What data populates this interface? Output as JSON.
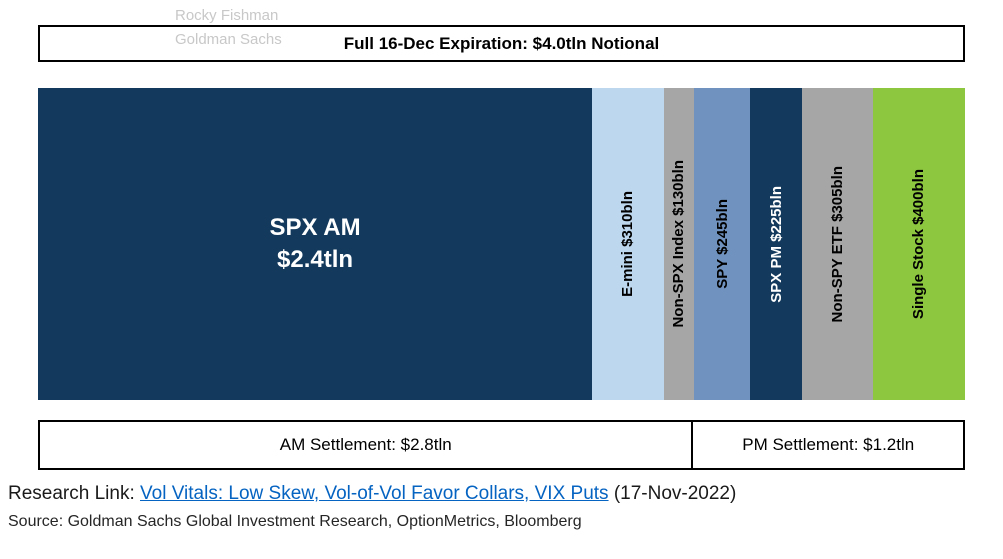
{
  "watermark": {
    "line1": "Rocky Fishman",
    "line2": "Goldman Sachs"
  },
  "chart_data": {
    "type": "bar",
    "subtype": "horizontal-stacked-proportional",
    "title": "Full 16-Dec Expiration: $4.0tln Notional",
    "total_notional_bln": 4000,
    "segments": [
      {
        "id": "spx-am",
        "label": "SPX AM\n$2.4tln",
        "value_bln": 2400,
        "color": "#133a5d",
        "text_color": "#ffffff",
        "horizontal_label": true
      },
      {
        "id": "e-mini",
        "label": "E-mini $310bln",
        "value_bln": 310,
        "color": "#bdd7ee",
        "text_color": "#000000",
        "horizontal_label": false
      },
      {
        "id": "non-spx-index",
        "label": "Non-SPX Index $130bln",
        "value_bln": 130,
        "color": "#a6a6a6",
        "text_color": "#000000",
        "horizontal_label": false
      },
      {
        "id": "spy",
        "label": "SPY $245bln",
        "value_bln": 245,
        "color": "#7092be",
        "text_color": "#000000",
        "horizontal_label": false
      },
      {
        "id": "spx-pm",
        "label": "SPX PM $225bln",
        "value_bln": 225,
        "color": "#133a5d",
        "text_color": "#ffffff",
        "horizontal_label": false
      },
      {
        "id": "non-spy-etf",
        "label": "Non-SPY ETF $305bln",
        "value_bln": 305,
        "color": "#a6a6a6",
        "text_color": "#000000",
        "horizontal_label": false
      },
      {
        "id": "single-stock",
        "label": "Single Stock $400bln",
        "value_bln": 400,
        "color": "#8dc63f",
        "text_color": "#000000",
        "horizontal_label": false
      }
    ],
    "settlement_brackets": [
      {
        "id": "am",
        "label": "AM Settlement: $2.8tln",
        "value_bln": 2840,
        "covers_segments": [
          "spx-am",
          "e-mini",
          "non-spx-index"
        ]
      },
      {
        "id": "pm",
        "label": "PM Settlement: $1.2tln",
        "value_bln": 1175,
        "covers_segments": [
          "spy",
          "spx-pm",
          "non-spy-etf",
          "single-stock"
        ]
      }
    ],
    "legend_position": "none",
    "grid": false
  },
  "footer": {
    "research_prefix": "Research Link: ",
    "research_link": "Vol Vitals: Low Skew, Vol-of-Vol Favor Collars, VIX Puts",
    "research_date": " (17-Nov-2022)",
    "source": "Source: Goldman Sachs Global Investment Research, OptionMetrics, Bloomberg"
  }
}
